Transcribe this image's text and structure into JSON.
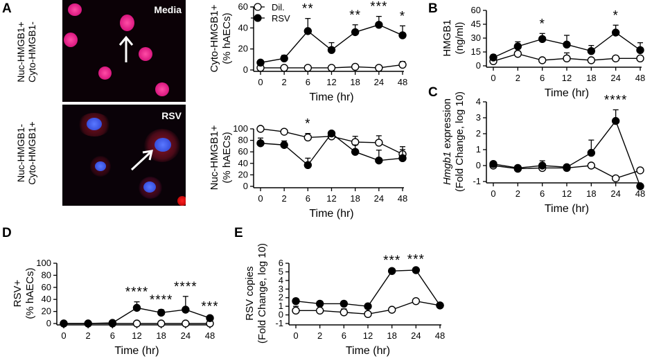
{
  "panels": {
    "A": {
      "letter": "A",
      "image_top_label": "Media",
      "image_bottom_label": "RSV",
      "row_top_label": [
        "Nuc-HMGB1+",
        "Cyto-HMGB1-"
      ],
      "row_bottom_label": [
        "Nuc-HMGB1-",
        "Cyto-HMGB1+"
      ]
    },
    "B": {
      "letter": "B"
    },
    "C": {
      "letter": "C"
    },
    "D": {
      "letter": "D"
    },
    "E": {
      "letter": "E"
    }
  },
  "legend": {
    "dil": "Dil.",
    "rsv": "RSV"
  },
  "chart_data": [
    {
      "id": "cyto",
      "type": "line",
      "categories": [
        "0",
        "2",
        "6",
        "12",
        "18",
        "24",
        "48"
      ],
      "ylabel": [
        "Cyto-HMGB1+",
        "(% hAECs)"
      ],
      "xlabel": "Time (hr)",
      "ylim": [
        0,
        60
      ],
      "yticks": [
        0,
        20,
        40,
        60
      ],
      "series": [
        {
          "name": "Dil.",
          "values": [
            2,
            2,
            2,
            2,
            3,
            2,
            5
          ],
          "errors": [
            1,
            1,
            1,
            1,
            1,
            1,
            3
          ]
        },
        {
          "name": "RSV",
          "values": [
            7,
            11,
            37,
            19,
            36,
            43,
            33
          ],
          "errors": [
            2,
            3,
            12,
            7,
            7,
            8,
            9
          ]
        }
      ],
      "significance": [
        {
          "category": "6",
          "label": "**"
        },
        {
          "category": "18",
          "label": "**"
        },
        {
          "category": "24",
          "label": "***"
        },
        {
          "category": "48",
          "label": "*"
        }
      ]
    },
    {
      "id": "nuc",
      "type": "line",
      "categories": [
        "0",
        "2",
        "6",
        "12",
        "18",
        "24",
        "48"
      ],
      "ylabel": [
        "Nuc-HMGB1+",
        "(% hAECs)"
      ],
      "xlabel": "Time (hr)",
      "ylim": [
        0,
        100
      ],
      "yticks": [
        0,
        20,
        40,
        60,
        80,
        100
      ],
      "series": [
        {
          "name": "Dil.",
          "values": [
            100,
            95,
            85,
            87,
            77,
            76,
            56
          ],
          "errors": [
            2,
            3,
            7,
            3,
            10,
            12,
            13
          ]
        },
        {
          "name": "RSV",
          "values": [
            75,
            72,
            37,
            92,
            60,
            45,
            49
          ],
          "errors": [
            9,
            7,
            12,
            3,
            12,
            18,
            15
          ]
        }
      ],
      "significance": [
        {
          "category": "6",
          "label": "*"
        }
      ]
    },
    {
      "id": "hmgb1",
      "type": "line",
      "categories": [
        "0",
        "2",
        "6",
        "12",
        "18",
        "24",
        "48"
      ],
      "ylabel": [
        "HMGB1",
        "(ng/ml)"
      ],
      "xlabel": "Time (hr)",
      "ylim": [
        0,
        60
      ],
      "yticks": [
        0,
        15,
        30,
        45,
        60
      ],
      "series": [
        {
          "name": "Dil.",
          "values": [
            5,
            13,
            6,
            8,
            6,
            8,
            8
          ],
          "errors": [
            2,
            3,
            2,
            6,
            2,
            2,
            2
          ]
        },
        {
          "name": "RSV",
          "values": [
            9,
            21,
            29,
            23,
            16,
            36,
            17
          ],
          "errors": [
            3,
            5,
            6,
            10,
            6,
            8,
            8
          ]
        }
      ],
      "significance": [
        {
          "category": "6",
          "label": "*"
        },
        {
          "category": "24",
          "label": "*"
        }
      ]
    },
    {
      "id": "hmgb1-expr",
      "type": "line",
      "categories": [
        "0",
        "2",
        "6",
        "12",
        "18",
        "24",
        "48"
      ],
      "ylabel_italic": "Hmgb1",
      "ylabel_rest": " expression",
      "ylabel2": "(Fold Change, log 10)",
      "xlabel": "Time (hr)",
      "ylim": [
        -1,
        4
      ],
      "yticks": [
        -1,
        0,
        1,
        2,
        3,
        4
      ],
      "series": [
        {
          "name": "Dil.",
          "values": [
            0.0,
            -0.2,
            -0.15,
            -0.15,
            0.0,
            -0.8,
            -0.3
          ],
          "errors": [
            0.2,
            0.1,
            0.2,
            0.1,
            0.1,
            0.1,
            0.1
          ]
        },
        {
          "name": "RSV",
          "values": [
            0.1,
            -0.15,
            0.0,
            -0.1,
            0.8,
            2.8,
            -1.3
          ],
          "errors": [
            0.1,
            0.1,
            0.3,
            0.1,
            0.8,
            0.7,
            0.1
          ]
        }
      ],
      "significance": [
        {
          "category": "24",
          "label": "****"
        }
      ]
    },
    {
      "id": "rsv-pos",
      "type": "line",
      "categories": [
        "0",
        "2",
        "6",
        "12",
        "18",
        "24",
        "48"
      ],
      "ylabel": [
        "RSV+",
        "(% hAECs)"
      ],
      "xlabel": "Time (hr)",
      "ylim": [
        0,
        100
      ],
      "yticks": [
        0,
        20,
        40,
        60,
        80,
        100
      ],
      "series": [
        {
          "name": "Dil.",
          "values": [
            0,
            0,
            0,
            0,
            0,
            0,
            0
          ],
          "errors": [
            0,
            0,
            0,
            0,
            0,
            0,
            0
          ]
        },
        {
          "name": "RSV",
          "values": [
            0,
            0,
            1,
            26,
            18,
            23,
            9
          ],
          "errors": [
            0,
            0,
            1,
            10,
            5,
            22,
            3
          ]
        }
      ],
      "significance": [
        {
          "category": "12",
          "label": "****"
        },
        {
          "category": "18",
          "label": "****"
        },
        {
          "category": "24",
          "label": "****"
        },
        {
          "category": "48",
          "label": "***"
        }
      ]
    },
    {
      "id": "rsv-copies",
      "type": "line",
      "categories": [
        "0",
        "2",
        "6",
        "12",
        "18",
        "24",
        "48"
      ],
      "ylabel": [
        "RSV copies",
        "(Fold Change, log 10)"
      ],
      "xlabel": "Time (hr)",
      "ylim": [
        -1,
        6
      ],
      "yticks": [
        -1,
        0,
        1,
        2,
        3,
        4,
        5,
        6
      ],
      "series": [
        {
          "name": "Dil.",
          "values": [
            0.5,
            0.5,
            0.3,
            0.1,
            0.6,
            1.6,
            1.1
          ],
          "errors": [
            0.5,
            0.6,
            0.4,
            0.1,
            0.1,
            0.1,
            0.1
          ]
        },
        {
          "name": "RSV",
          "values": [
            1.6,
            1.3,
            1.3,
            1.0,
            5.1,
            5.2,
            1.1
          ],
          "errors": [
            0.3,
            0.3,
            0.3,
            0.3,
            0.1,
            0.1,
            0.1
          ]
        }
      ],
      "significance": [
        {
          "category": "18",
          "label": "***"
        },
        {
          "category": "24",
          "label": "***"
        }
      ]
    }
  ]
}
